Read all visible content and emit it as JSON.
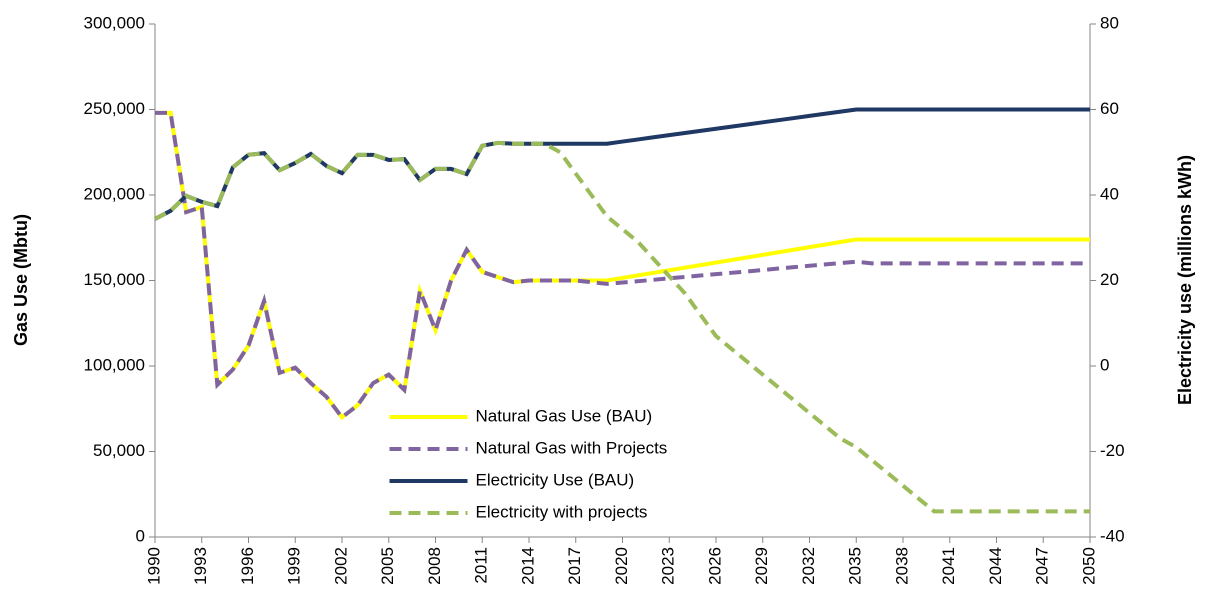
{
  "chart_data": {
    "type": "line",
    "y_label": "Gas Use (Mbtu)",
    "y2_label": "Electricity use (millions kWh)",
    "x": [
      1990,
      1991,
      1992,
      1993,
      1994,
      1995,
      1996,
      1997,
      1998,
      1999,
      2000,
      2001,
      2002,
      2003,
      2004,
      2005,
      2006,
      2007,
      2008,
      2009,
      2010,
      2011,
      2012,
      2013,
      2014,
      2015,
      2016,
      2017,
      2018,
      2019,
      2020,
      2021,
      2022,
      2023,
      2024,
      2025,
      2026,
      2027,
      2028,
      2029,
      2030,
      2031,
      2032,
      2033,
      2034,
      2035,
      2036,
      2037,
      2038,
      2039,
      2040,
      2041,
      2042,
      2043,
      2044,
      2045,
      2046,
      2047,
      2048,
      2049,
      2050
    ],
    "xlim": [
      1990,
      2050
    ],
    "xticks": [
      1990,
      1993,
      1996,
      1999,
      2002,
      2005,
      2008,
      2011,
      2014,
      2017,
      2020,
      2023,
      2026,
      2029,
      2032,
      2035,
      2038,
      2041,
      2044,
      2047,
      2050
    ],
    "ylim": [
      0,
      300000
    ],
    "yticks": [
      0,
      {
        "value": 50000,
        "label": "50,000"
      },
      {
        "value": 100000,
        "label": "100,000"
      },
      {
        "value": 150000,
        "label": "150,000"
      },
      {
        "value": 200000,
        "label": "200,000"
      },
      {
        "value": 250000,
        "label": "250,000"
      },
      {
        "value": 300000,
        "label": "300,000"
      }
    ],
    "y2lim": [
      -40,
      80
    ],
    "y2ticks": [
      -40,
      -20,
      0,
      20,
      40,
      60,
      80
    ],
    "legend": "lower center",
    "series": [
      {
        "name": "Natural Gas Use (BAU)",
        "color": "#ffff00",
        "dash": false,
        "values": [
          248000,
          248000,
          190000,
          193000,
          89000,
          98000,
          112000,
          138000,
          96000,
          99000,
          90000,
          82000,
          70000,
          77000,
          90000,
          95000,
          86000,
          144000,
          121000,
          150000,
          168000,
          155000,
          152000,
          149000,
          150000,
          150000,
          150000,
          150000,
          150000,
          150000,
          151500,
          153000,
          154500,
          156000,
          157500,
          159000,
          160500,
          162000,
          163500,
          165000,
          166500,
          168000,
          169500,
          171000,
          172500,
          174000,
          174000,
          174000,
          174000,
          174000,
          174000,
          174000,
          174000,
          174000,
          174000,
          174000,
          174000,
          174000,
          174000,
          174000,
          174000
        ]
      },
      {
        "name": "Natural Gas with Projects",
        "color": "#8064a2",
        "dash": true,
        "values": [
          248000,
          248000,
          190000,
          193000,
          89000,
          98000,
          112000,
          138000,
          96000,
          99000,
          90000,
          82000,
          70000,
          77000,
          90000,
          95000,
          86000,
          144000,
          121000,
          150000,
          168000,
          155000,
          152000,
          149000,
          150000,
          150000,
          150000,
          150000,
          149000,
          148000,
          148800,
          149600,
          150400,
          151300,
          152100,
          152900,
          153700,
          154500,
          155300,
          156100,
          157000,
          157800,
          158600,
          159400,
          160200,
          161000,
          160000,
          160000,
          160000,
          160000,
          160000,
          160000,
          160000,
          160000,
          160000,
          160000,
          160000,
          160000,
          160000,
          160000,
          160000
        ]
      },
      {
        "name": "Electricity Use (BAU)",
        "color": "#1f3864",
        "dash": false,
        "axis": "y2",
        "values": [
          34.4,
          36.3,
          39.8,
          38.4,
          37.4,
          46.5,
          49.4,
          49.8,
          45.8,
          47.5,
          49.6,
          46.8,
          45.1,
          49.4,
          49.4,
          48.2,
          48.4,
          43.5,
          46.1,
          46.1,
          44.9,
          51.5,
          52.2,
          52,
          52,
          52,
          52,
          52,
          52,
          52,
          52.5,
          53,
          53.5,
          54,
          54.5,
          55,
          55.5,
          56,
          56.5,
          57,
          57.5,
          58,
          58.5,
          59,
          59.5,
          60,
          60,
          60,
          60,
          60,
          60,
          60,
          60,
          60,
          60,
          60,
          60,
          60,
          60,
          60,
          60
        ]
      },
      {
        "name": "Electricity with projects",
        "color": "#9bbb59",
        "dash": true,
        "axis": "y2",
        "values": [
          34.4,
          36.3,
          39.8,
          38.4,
          37.4,
          46.5,
          49.4,
          49.8,
          45.8,
          47.5,
          49.6,
          46.8,
          45.1,
          49.4,
          49.4,
          48.2,
          48.4,
          43.5,
          46.1,
          46.1,
          44.9,
          51.5,
          52.2,
          52,
          52,
          52,
          50,
          45,
          40,
          35,
          32,
          29,
          25,
          21,
          17,
          12,
          7,
          4,
          1,
          -2,
          -5,
          -8,
          -11,
          -14,
          -17,
          -19,
          -22,
          -25,
          -28,
          -31,
          -34,
          -34,
          -34,
          -34,
          -34,
          -34,
          -34,
          -34,
          -34,
          -34,
          -34
        ]
      }
    ]
  }
}
